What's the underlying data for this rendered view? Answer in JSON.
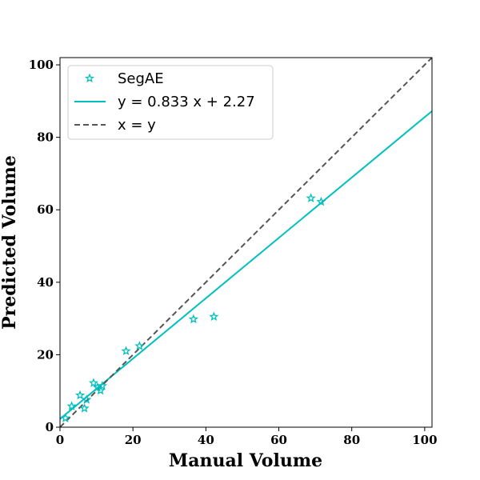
{
  "chart_data": {
    "type": "scatter",
    "xlabel": "Manual Volume",
    "ylabel": "Predicted Volume",
    "xlim": [
      0,
      102
    ],
    "ylim": [
      0,
      102
    ],
    "x_ticks": [
      "0",
      "20",
      "40",
      "60",
      "80",
      "100"
    ],
    "y_ticks": [
      "0",
      "20",
      "40",
      "60",
      "80",
      "100"
    ],
    "grid": false,
    "legend_position": "top-left",
    "series": [
      {
        "name": "SegAE",
        "kind": "scatter",
        "marker": "star-outline",
        "color": "#00bfbf",
        "points": [
          [
            1.5,
            2.5
          ],
          [
            3.2,
            5.8
          ],
          [
            5.5,
            8.8
          ],
          [
            6.7,
            5.2
          ],
          [
            7.3,
            7.6
          ],
          [
            9.2,
            12.2
          ],
          [
            10.3,
            11.0
          ],
          [
            11.1,
            10.1
          ],
          [
            11.6,
            11.4
          ],
          [
            18.1,
            21.0
          ],
          [
            21.8,
            22.4
          ],
          [
            36.6,
            29.8
          ],
          [
            42.2,
            30.5
          ],
          [
            68.8,
            63.2
          ],
          [
            71.6,
            62.2
          ]
        ]
      },
      {
        "name": "y = 0.833 x + 2.27",
        "kind": "line",
        "slope": 0.833,
        "intercept": 2.27,
        "color": "#00bfbf",
        "dash": "solid"
      },
      {
        "name": "x = y",
        "kind": "line",
        "slope": 1,
        "intercept": 0,
        "color": "#555555",
        "dash": "dashed"
      }
    ]
  }
}
